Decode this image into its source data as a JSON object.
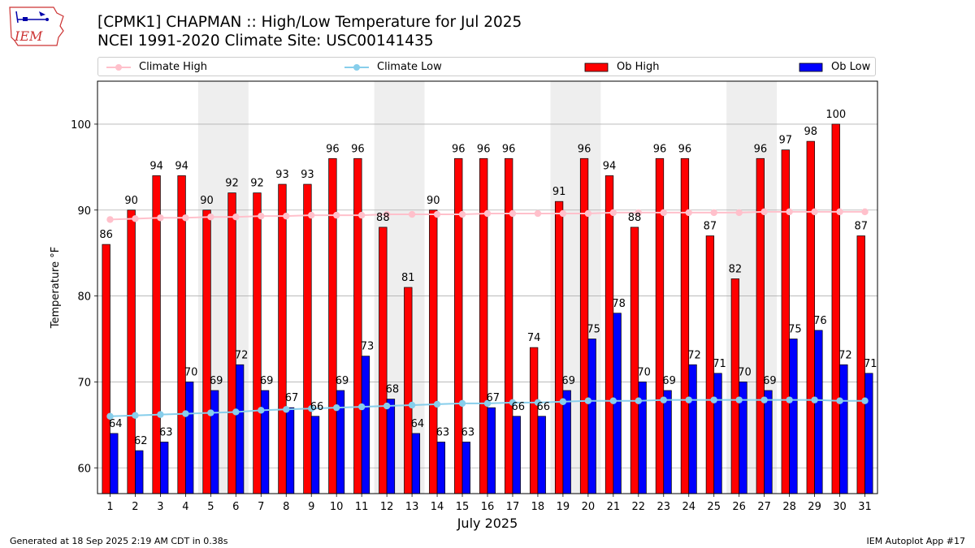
{
  "header": {
    "logo_text": "IEM",
    "title_line1": "[CPMK1] CHAPMAN :: High/Low Temperature for Jul 2025",
    "title_line2": "NCEI 1991-2020 Climate Site: USC00141435"
  },
  "legend": {
    "climate_high": "Climate High",
    "climate_low": "Climate Low",
    "ob_high": "Ob High",
    "ob_low": "Ob Low"
  },
  "colors": {
    "ob_high": "#ff0000",
    "ob_low": "#0000ff",
    "climate_high": "#ffc0cb",
    "climate_low": "#87ceeb",
    "weekend_band": "#eeeeee",
    "grid": "#b0b0b0"
  },
  "footer": {
    "left": "Generated at 18 Sep 2025 2:19 AM CDT in 0.38s",
    "right": "IEM Autoplot App #17"
  },
  "chart_data": {
    "type": "bar",
    "xlabel": "July 2025",
    "ylabel": "Temperature °F",
    "ylim": [
      57,
      105
    ],
    "yticks": [
      60,
      70,
      80,
      90,
      100
    ],
    "grid": true,
    "categories": [
      "1",
      "2",
      "3",
      "4",
      "5",
      "6",
      "7",
      "8",
      "9",
      "10",
      "11",
      "12",
      "13",
      "14",
      "15",
      "16",
      "17",
      "18",
      "19",
      "20",
      "21",
      "22",
      "23",
      "24",
      "25",
      "26",
      "27",
      "28",
      "29",
      "30",
      "31"
    ],
    "weekend_days": [
      [
        5,
        6
      ],
      [
        12,
        13
      ],
      [
        19,
        20
      ],
      [
        26,
        27
      ]
    ],
    "series": [
      {
        "name": "Ob High",
        "type": "bar",
        "values": [
          86,
          90,
          94,
          94,
          90,
          92,
          92,
          93,
          93,
          96,
          96,
          88,
          81,
          90,
          96,
          96,
          96,
          74,
          91,
          96,
          94,
          88,
          96,
          96,
          87,
          82,
          96,
          97,
          98,
          100,
          87
        ]
      },
      {
        "name": "Ob Low",
        "type": "bar",
        "values": [
          64,
          62,
          63,
          70,
          69,
          72,
          69,
          67,
          66,
          69,
          73,
          68,
          64,
          63,
          63,
          67,
          66,
          66,
          69,
          75,
          78,
          70,
          69,
          72,
          71,
          70,
          69,
          75,
          76,
          72,
          71
        ]
      },
      {
        "name": "Climate High",
        "type": "line",
        "values": [
          88.9,
          89.0,
          89.1,
          89.1,
          89.2,
          89.2,
          89.3,
          89.3,
          89.4,
          89.4,
          89.4,
          89.5,
          89.5,
          89.5,
          89.5,
          89.6,
          89.6,
          89.6,
          89.6,
          89.6,
          89.7,
          89.7,
          89.7,
          89.7,
          89.7,
          89.7,
          89.8,
          89.8,
          89.8,
          89.8,
          89.8
        ]
      },
      {
        "name": "Climate Low",
        "type": "line",
        "values": [
          66.0,
          66.1,
          66.2,
          66.3,
          66.4,
          66.5,
          66.7,
          66.8,
          66.9,
          67.0,
          67.1,
          67.2,
          67.3,
          67.4,
          67.5,
          67.5,
          67.6,
          67.6,
          67.7,
          67.8,
          67.8,
          67.8,
          67.9,
          67.9,
          67.9,
          67.9,
          67.9,
          67.9,
          67.9,
          67.8,
          67.8
        ]
      }
    ]
  }
}
